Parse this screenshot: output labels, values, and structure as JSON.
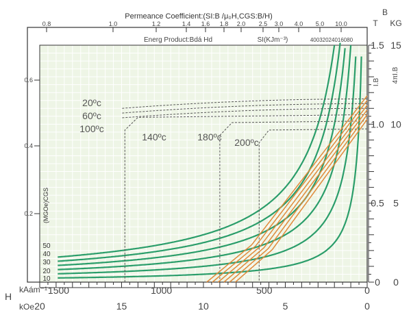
{
  "chart_data": {
    "type": "line",
    "title": "Permeance Coefficient:(SI:B /μ₀H,CGS:B/H)",
    "subtitle": "Energ Product:Bdá Hd",
    "energy_unit_label": "SI(KJm⁻³)",
    "energy_scale_label": "40032024016080",
    "left_axis_label": "(MGOe)CGS",
    "right_axis_label_1": "I.B",
    "right_axis_label_2": "4πI.B",
    "corner_label_b": "B",
    "corner_label_t": "T",
    "corner_label_kg": "KG",
    "bottom_axis_prefix": "H",
    "bottom_unit_si": "kAám⁻¹",
    "bottom_unit_cgs": "kOe",
    "permeance_ticks": [
      "0.8",
      "1.0",
      "1.2",
      "1.4",
      "1.6",
      "1.8",
      "2.0",
      "2.5",
      "3.0",
      "4.0",
      "5.0",
      "10.0"
    ],
    "h_si_ticks": [
      "1500",
      "1000",
      "500",
      "0"
    ],
    "h_koe_ticks": [
      "20",
      "15",
      "10",
      "5",
      "0"
    ],
    "b_tesla_ticks": [
      "0",
      "0.5",
      "1.0",
      "1.5"
    ],
    "b_kg_ticks": [
      "0",
      "5",
      "10",
      "15"
    ],
    "left_ticks": [
      "0.2",
      "0.4",
      "0.6"
    ],
    "energy_labels": [
      "50",
      "40",
      "30",
      "20",
      "10"
    ],
    "temp_labels": [
      "20ºc",
      "60ºc",
      "100ºc",
      "140ºc",
      "180ºc",
      "200ºc"
    ],
    "h_range_koe": [
      0,
      20
    ],
    "b_range_kg": [
      0,
      15
    ],
    "colors": {
      "energy_curve": "#2a9d6a",
      "demag_curve": "#e08a3a",
      "temp_line": "#555555",
      "plot_bg": "#eef5e6"
    }
  }
}
